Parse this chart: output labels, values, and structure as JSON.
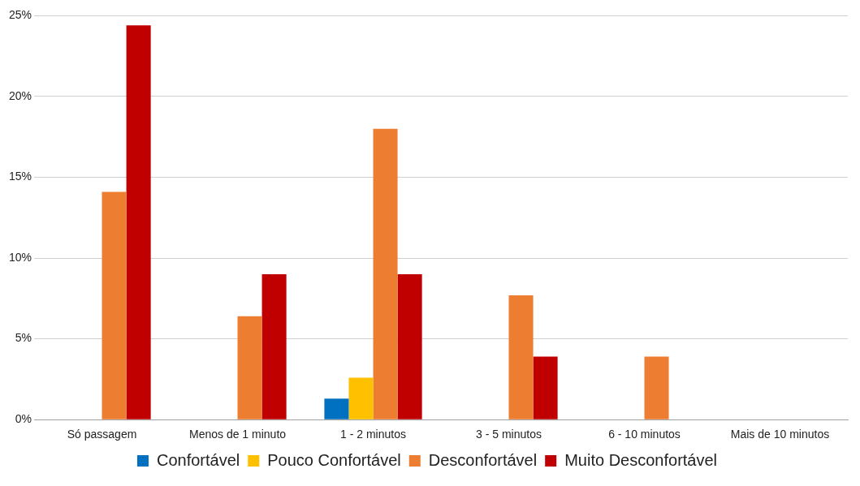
{
  "chart_data": {
    "type": "bar",
    "categories": [
      "Só passagem",
      "Menos de 1 minuto",
      "1 - 2 minutos",
      "3 - 5 minutos",
      "6 - 10 minutos",
      "Mais de 10 minutos"
    ],
    "series": [
      {
        "name": "Confortável",
        "color": "#0070c0",
        "values": [
          0,
          0,
          1.3,
          0,
          0,
          0
        ]
      },
      {
        "name": "Pouco Confortável",
        "color": "#ffc000",
        "values": [
          0,
          0,
          2.6,
          0,
          0,
          0
        ]
      },
      {
        "name": "Desconfortável",
        "color": "#ed7d31",
        "values": [
          14.1,
          6.4,
          18.0,
          7.7,
          3.9,
          0
        ]
      },
      {
        "name": "Muito Desconfortável",
        "color": "#c00000",
        "values": [
          24.4,
          9.0,
          9.0,
          3.9,
          0,
          0
        ]
      }
    ],
    "ylim": [
      0,
      25
    ],
    "yticks": [
      {
        "value": 0,
        "label": "0%"
      },
      {
        "value": 5,
        "label": "5%"
      },
      {
        "value": 10,
        "label": "10%"
      },
      {
        "value": 15,
        "label": "15%"
      },
      {
        "value": 20,
        "label": "20%"
      },
      {
        "value": 25,
        "label": "25%"
      }
    ],
    "grid": "y",
    "legend": "bottom"
  }
}
